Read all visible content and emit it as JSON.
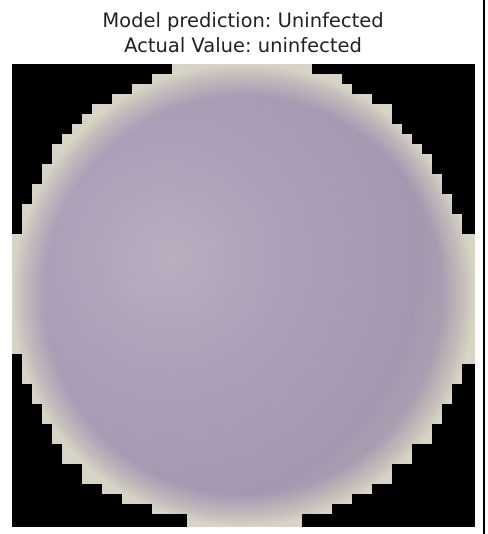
{
  "title": {
    "line1": "Model prediction: Uninfected",
    "line2": "Actual Value: uninfected"
  },
  "image": {
    "subject": "blood-cell-micrograph",
    "background_color": "#000000",
    "cell_color": "#a99bb4",
    "rim_color": "#d8d6c4"
  }
}
